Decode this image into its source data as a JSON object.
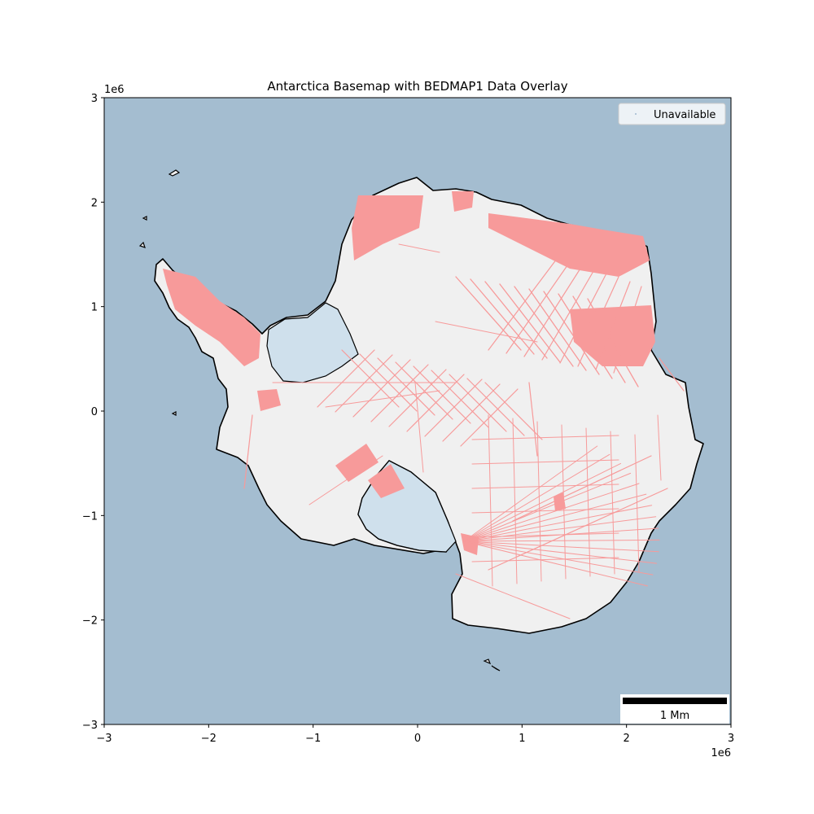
{
  "figure": {
    "title": "Antarctica Basemap with BEDMAP1 Data Overlay",
    "x_offset_label": "1e6",
    "y_offset_label": "1e6",
    "legend": {
      "entry": "Unavailable",
      "placement": "upper-right"
    },
    "scalebar": {
      "label": "1 Mm",
      "length_data_units": 1000000,
      "placement": "lower-right"
    }
  },
  "colors": {
    "ocean": "#a4bdd0",
    "land": "#f0f0f0",
    "coastline": "#000000",
    "ice_shelf_unavailable": "#cfe0ec",
    "survey_tracks": "#f79a9a"
  },
  "chart_data": {
    "type": "map",
    "title": "Antarctica Basemap with BEDMAP1 Data Overlay",
    "xlabel": "",
    "ylabel": "",
    "xlim": [
      -3000000,
      3000000
    ],
    "ylim": [
      -3000000,
      3000000
    ],
    "x_ticks": [
      -3,
      -2,
      -1,
      0,
      1,
      2,
      3
    ],
    "y_ticks": [
      -3,
      -2,
      -1,
      0,
      1,
      2,
      3
    ],
    "x_tick_labels": [
      "−3",
      "−2",
      "−1",
      "0",
      "1",
      "2",
      "3"
    ],
    "y_tick_labels": [
      "−3",
      "−2",
      "−1",
      "0",
      "1",
      "2",
      "3"
    ],
    "axis_scale_label": "1e6",
    "grid": false,
    "legend": [
      "Unavailable"
    ]
  }
}
